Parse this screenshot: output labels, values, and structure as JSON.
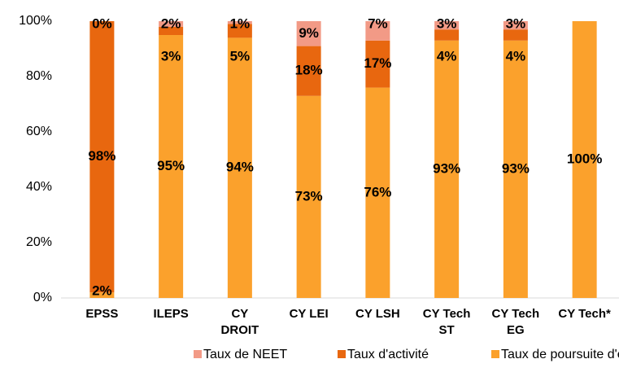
{
  "chart_data": {
    "type": "stacked_bar",
    "categories": [
      "EPSS",
      "ILEPS",
      "CY\nDROIT",
      "CY LEI",
      "CY LSH",
      "CY Tech\nST",
      "CY Tech\nEG",
      "CY Tech*"
    ],
    "series": [
      {
        "name": "Taux de poursuite d'études",
        "color": "#FBA12C",
        "values": [
          2,
          95,
          94,
          73,
          76,
          93,
          93,
          100
        ],
        "value_labels": [
          "2%",
          "95%",
          "94%",
          "73%",
          "76%",
          "93%",
          "93%",
          "100%"
        ]
      },
      {
        "name": "Taux d'activité",
        "color": "#E8670F",
        "values": [
          98,
          3,
          5,
          18,
          17,
          4,
          4,
          null
        ],
        "value_labels": [
          "98%",
          "3%",
          "5%",
          "18%",
          "17%",
          "4%",
          "4%",
          null
        ]
      },
      {
        "name": "Taux de NEET",
        "color": "#F29A86",
        "values": [
          0,
          2,
          1,
          9,
          7,
          3,
          3,
          null
        ],
        "value_labels": [
          "0%",
          "2%",
          "1%",
          "9%",
          "7%",
          "3%",
          "3%",
          null
        ]
      }
    ],
    "ylim": [
      0,
      100
    ],
    "yticks": [
      {
        "value": 0,
        "label": "0%"
      },
      {
        "value": 20,
        "label": "20%"
      },
      {
        "value": 40,
        "label": "40%"
      },
      {
        "value": 60,
        "label": "60%"
      },
      {
        "value": 80,
        "label": "80%"
      },
      {
        "value": 100,
        "label": "100%"
      }
    ],
    "grid": false,
    "legend": "bottom"
  }
}
